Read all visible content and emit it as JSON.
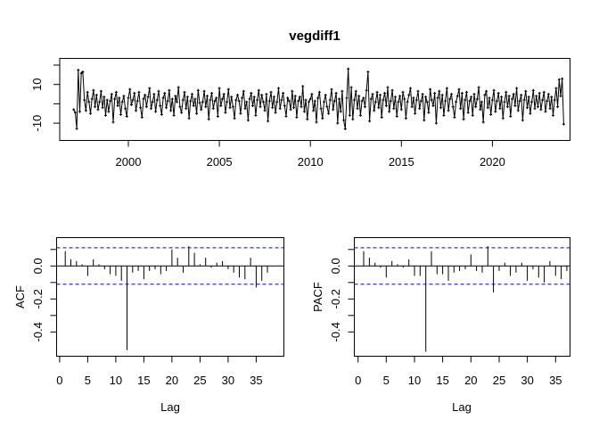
{
  "title": "vegdiff1",
  "colors": {
    "series": "#000000",
    "axis": "#000000",
    "conf_line": "#0000ff",
    "background": "#ffffff"
  },
  "chart_data": [
    {
      "id": "timeseries",
      "type": "line",
      "title": "vegdiff1",
      "xlabel": "",
      "ylabel": "",
      "marker": "plus",
      "x_start": 1997.0,
      "x_step_per_year": 12,
      "x_ticks": [
        2000,
        2005,
        2010,
        2015,
        2020
      ],
      "y_ticks": [
        20,
        10,
        0,
        -10
      ],
      "y_tick_labels": [
        "",
        "10",
        "",
        "-10"
      ],
      "xlim": [
        1996.2,
        2024.3
      ],
      "ylim": [
        -19,
        23
      ],
      "grid": false,
      "values": [
        -3.0,
        -4.5,
        -12.8,
        17.4,
        -4.0,
        15.8,
        16.5,
        2.0,
        -3.5,
        6.0,
        1.0,
        -5.0,
        2.5,
        7.0,
        -1.5,
        4.5,
        -3.0,
        1.0,
        6.5,
        -2.0,
        3.5,
        -6.0,
        2.0,
        -4.0,
        1.5,
        5.0,
        -9.5,
        2.5,
        6.0,
        -1.0,
        3.0,
        -5.5,
        1.0,
        4.0,
        -2.5,
        -6.5,
        3.0,
        7.5,
        -0.5,
        2.0,
        5.5,
        -3.5,
        1.5,
        6.0,
        -2.0,
        -7.0,
        2.5,
        4.5,
        -1.5,
        3.5,
        8.0,
        -2.5,
        1.0,
        5.0,
        -4.0,
        2.0,
        6.5,
        -1.0,
        -5.5,
        3.0,
        5.5,
        -2.0,
        1.5,
        7.0,
        -3.5,
        2.5,
        -6.0,
        4.0,
        1.0,
        8.5,
        -1.5,
        -4.5,
        2.0,
        6.0,
        -2.5,
        3.5,
        -7.5,
        1.5,
        5.0,
        -1.0,
        2.5,
        -5.0,
        7.0,
        0.5,
        -3.0,
        1.0,
        6.5,
        -1.5,
        4.0,
        -8.0,
        2.0,
        5.5,
        -2.5,
        1.5,
        3.0,
        -6.5,
        8.0,
        -1.0,
        2.5,
        5.0,
        -4.5,
        1.0,
        7.5,
        -2.0,
        3.5,
        -1.5,
        -7.5,
        2.0,
        4.5,
        1.5,
        -5.0,
        3.0,
        6.5,
        -2.5,
        1.0,
        -8.5,
        2.5,
        5.5,
        -1.0,
        3.5,
        -6.0,
        2.0,
        7.0,
        -1.5,
        4.5,
        1.0,
        -3.5,
        5.0,
        -9.0,
        1.5,
        6.0,
        -2.0,
        3.5,
        -4.5,
        1.0,
        8.0,
        -2.5,
        2.0,
        5.5,
        -1.0,
        -6.5,
        3.0,
        1.5,
        -3.0,
        6.5,
        -2.0,
        4.0,
        -7.0,
        1.5,
        3.5,
        -1.5,
        9.0,
        -4.0,
        2.0,
        -8.0,
        1.0,
        2.5,
        5.0,
        -3.5,
        1.5,
        -9.5,
        3.0,
        6.0,
        -2.5,
        -7.5,
        1.0,
        4.5,
        -1.5,
        -5.0,
        2.0,
        7.5,
        -3.0,
        1.5,
        5.5,
        -10.0,
        2.5,
        -4.0,
        6.5,
        -8.5,
        -13.0,
        3.0,
        18.0,
        -6.0,
        8.5,
        -8.0,
        2.0,
        6.5,
        -2.5,
        4.0,
        -6.0,
        1.5,
        3.0,
        -1.5,
        7.0,
        16.5,
        -9.0,
        2.5,
        5.0,
        -3.5,
        1.0,
        6.0,
        -2.0,
        4.5,
        -7.0,
        2.0,
        5.5,
        -1.0,
        8.5,
        -4.0,
        1.5,
        7.0,
        -2.5,
        3.5,
        -6.5,
        1.0,
        4.0,
        -3.0,
        6.0,
        2.5,
        -7.5,
        1.0,
        4.5,
        8.0,
        -1.5,
        3.0,
        -5.0,
        2.0,
        6.5,
        -2.5,
        1.5,
        5.0,
        -8.5,
        3.5,
        1.0,
        -4.5,
        7.5,
        2.0,
        -1.0,
        5.5,
        -10.0,
        3.0,
        6.5,
        -2.0,
        4.5,
        -6.0,
        1.5,
        8.0,
        -3.5,
        2.5,
        5.0,
        -1.5,
        -7.0,
        1.0,
        4.0,
        7.5,
        -2.5,
        5.5,
        -8.0,
        2.0,
        6.0,
        -4.5,
        1.5,
        3.5,
        -6.0,
        5.0,
        -1.5,
        2.5,
        8.5,
        -3.0,
        1.0,
        -9.5,
        4.5,
        6.5,
        -2.0,
        3.0,
        -5.5,
        2.0,
        7.0,
        -4.0,
        1.5,
        5.5,
        -2.5,
        3.5,
        -7.5,
        1.0,
        6.0,
        -1.5,
        4.0,
        -6.5,
        2.5,
        5.0,
        -1.0,
        8.0,
        -3.5,
        1.5,
        4.5,
        -8.5,
        2.0,
        6.5,
        -2.0,
        3.5,
        -5.0,
        1.0,
        7.0,
        -2.5,
        4.0,
        -1.5,
        5.5,
        -3.0,
        2.0,
        6.0,
        -4.0,
        1.5,
        5.0,
        -2.5,
        3.5,
        -6.0,
        2.0,
        8.0,
        -1.5,
        12.5,
        4.0,
        13.0,
        -10.5
      ]
    },
    {
      "id": "acf",
      "type": "bar",
      "title": "",
      "xlabel": "Lag",
      "ylabel": "ACF",
      "lag_start": 1,
      "conf_bound": 0.11,
      "x_ticks": [
        0,
        5,
        10,
        15,
        20,
        25,
        30,
        35
      ],
      "y_ticks": [
        0.1,
        0.0,
        -0.1,
        -0.2,
        -0.3,
        -0.4
      ],
      "y_tick_labels": [
        "",
        "0.0",
        "",
        "-0.2",
        "",
        "-0.4"
      ],
      "xlim": [
        0,
        37
      ],
      "ylim": [
        -0.55,
        0.17
      ],
      "values": [
        0.09,
        0.04,
        0.03,
        0.01,
        -0.06,
        0.04,
        0.01,
        -0.02,
        -0.05,
        -0.06,
        -0.09,
        -0.51,
        -0.04,
        -0.03,
        -0.08,
        -0.03,
        -0.02,
        -0.05,
        -0.03,
        0.1,
        0.05,
        -0.04,
        0.12,
        0.08,
        0.01,
        0.05,
        -0.01,
        0.02,
        0.03,
        -0.02,
        -0.04,
        -0.07,
        -0.08,
        0.05,
        -0.13,
        -0.09,
        -0.04
      ]
    },
    {
      "id": "pacf",
      "type": "bar",
      "title": "",
      "xlabel": "Lag",
      "ylabel": "PACF",
      "lag_start": 1,
      "conf_bound": 0.11,
      "x_ticks": [
        0,
        5,
        10,
        15,
        20,
        25,
        30,
        35
      ],
      "y_ticks": [
        0.1,
        0.0,
        -0.1,
        -0.2,
        -0.3,
        -0.4
      ],
      "y_tick_labels": [
        "",
        "0.0",
        "",
        "-0.2",
        "",
        "-0.4"
      ],
      "xlim": [
        0,
        37
      ],
      "ylim": [
        -0.55,
        0.17
      ],
      "values": [
        0.09,
        0.05,
        0.02,
        -0.01,
        -0.07,
        0.03,
        0.01,
        -0.01,
        0.04,
        -0.06,
        -0.06,
        -0.52,
        0.09,
        -0.05,
        -0.05,
        -0.09,
        -0.04,
        -0.03,
        -0.02,
        0.07,
        -0.03,
        -0.04,
        0.12,
        -0.16,
        -0.03,
        0.02,
        -0.06,
        -0.04,
        0.02,
        -0.09,
        -0.02,
        -0.07,
        -0.1,
        0.03,
        -0.06,
        -0.08,
        -0.03
      ]
    }
  ]
}
